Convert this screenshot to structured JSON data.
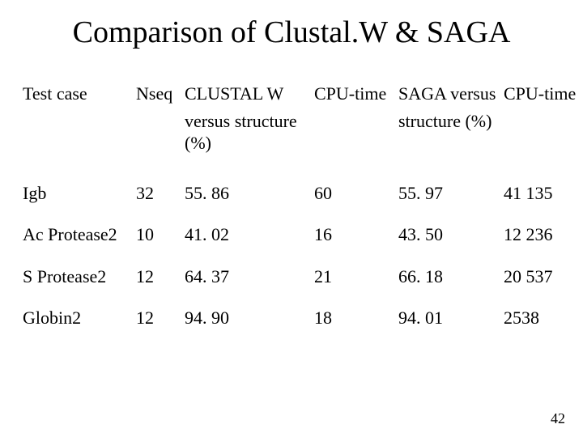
{
  "title": "Comparison of Clustal.W & SAGA",
  "table": {
    "header_row1": {
      "c1": "Test case",
      "c2": "Nseq",
      "c3": "CLUSTAL W",
      "c4": "CPU-time",
      "c5": "SAGA versus",
      "c6": "CPU-time"
    },
    "header_row2": {
      "c3": "versus structure (%)",
      "c5": "structure (%)"
    },
    "rows": [
      {
        "c1": "Igb",
        "c2": "32",
        "c3": "55. 86",
        "c4": "60",
        "c5": "55. 97",
        "c6": "41 135"
      },
      {
        "c1": "Ac Protease2",
        "c2": "10",
        "c3": "41. 02",
        "c4": "16",
        "c5": "43. 50",
        "c6": "12 236"
      },
      {
        "c1": "S Protease2",
        "c2": "12",
        "c3": "64. 37",
        "c4": "21",
        "c5": "66. 18",
        "c6": "20 537"
      },
      {
        "c1": "Globin2",
        "c2": "12",
        "c3": "94. 90",
        "c4": "18",
        "c5": "94. 01",
        "c6": "2538"
      }
    ]
  },
  "page_number": "42",
  "style": {
    "background_color": "#ffffff",
    "text_color": "#000000",
    "title_fontsize": 38,
    "body_fontsize": 22,
    "font_family": "Times New Roman"
  }
}
